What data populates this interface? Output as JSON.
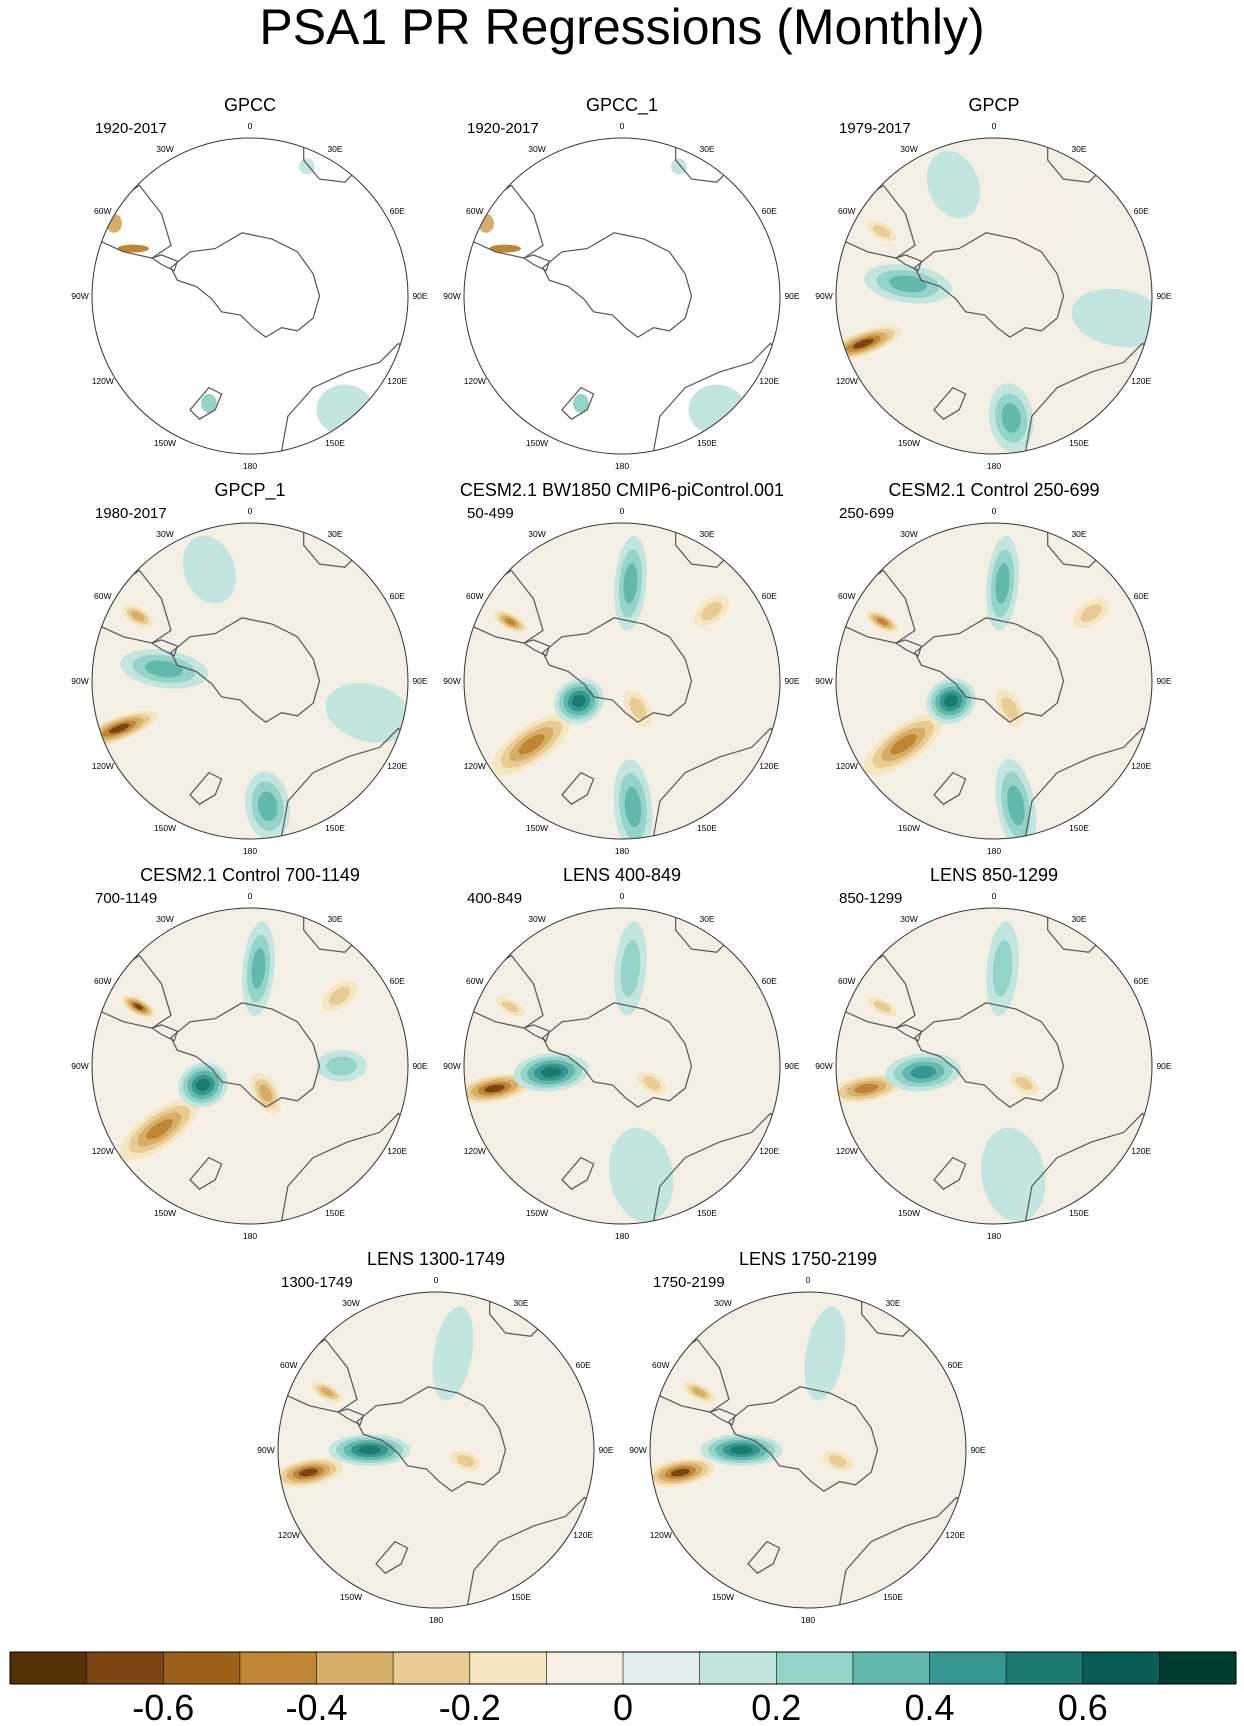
{
  "page_title": "PSA1 PR Regressions (Monthly)",
  "lon_labels": {
    "top": "0",
    "deg30e": "30E",
    "deg60e": "60E",
    "deg90e": "90E",
    "deg120e": "120E",
    "deg150e": "150E",
    "bottom": "180",
    "deg150w": "150W",
    "deg120w": "120W",
    "deg90w": "90W",
    "deg60w": "60W",
    "deg30w": "30W"
  },
  "panels": [
    {
      "title": "GPCC",
      "period": "1920-2017",
      "coverage": "land-only"
    },
    {
      "title": "GPCC_1",
      "period": "1920-2017",
      "coverage": "land-only"
    },
    {
      "title": "GPCP",
      "period": "1979-2017",
      "coverage": "global"
    },
    {
      "title": "GPCP_1",
      "period": "1980-2017",
      "coverage": "global"
    },
    {
      "title": "CESM2.1 BW1850 CMIP6-piControl.001",
      "period": "50-499",
      "coverage": "global"
    },
    {
      "title": "CESM2.1 Control 250-699",
      "period": "250-699",
      "coverage": "global"
    },
    {
      "title": "CESM2.1 Control 700-1149",
      "period": "700-1149",
      "coverage": "global"
    },
    {
      "title": "LENS 400-849",
      "period": "400-849",
      "coverage": "global"
    },
    {
      "title": "LENS 850-1299",
      "period": "850-1299",
      "coverage": "global"
    },
    {
      "title": "LENS 1300-1749",
      "period": "1300-1749",
      "coverage": "global"
    },
    {
      "title": "LENS 1750-2199",
      "period": "1750-2199",
      "coverage": "global"
    }
  ],
  "colorbar": {
    "colors": [
      "#543005",
      "#7a4510",
      "#9e611c",
      "#bf8535",
      "#d6ae68",
      "#e8cc94",
      "#f5e6c2",
      "#f5f0e3",
      "#e1efee",
      "#c2e6df",
      "#93d3c8",
      "#62b8ab",
      "#35978f",
      "#1c7b71",
      "#0a5d55",
      "#003c30"
    ],
    "tick_labels": [
      "-0.6",
      "-0.4",
      "-0.2",
      "0",
      "0.2",
      "0.4",
      "0.6"
    ]
  },
  "colors": {
    "land_outline": "#555555",
    "ocean_fill": "#f3efe4"
  }
}
